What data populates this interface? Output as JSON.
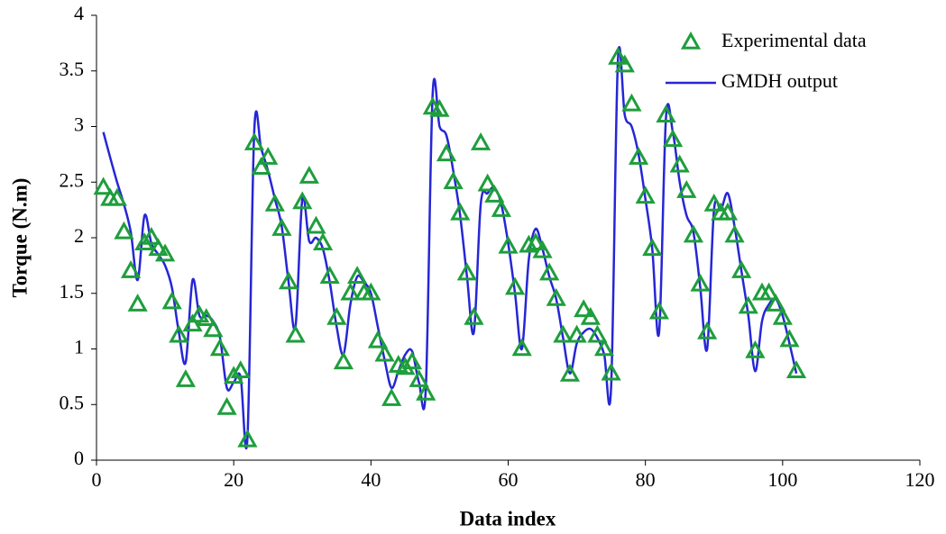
{
  "chart_data": {
    "type": "line",
    "xlabel": "Data index",
    "ylabel": "Torque (N.m)",
    "xlim": [
      0,
      120
    ],
    "ylim": [
      0,
      4
    ],
    "xticks": [
      0,
      20,
      40,
      60,
      80,
      100,
      120
    ],
    "yticks": [
      0,
      0.5,
      1,
      1.5,
      2,
      2.5,
      3,
      3.5,
      4
    ],
    "legend": "upper right",
    "x": [
      1,
      2,
      3,
      4,
      5,
      6,
      7,
      8,
      9,
      10,
      11,
      12,
      13,
      14,
      15,
      16,
      17,
      18,
      19,
      20,
      21,
      22,
      23,
      24,
      25,
      26,
      27,
      28,
      29,
      30,
      31,
      32,
      33,
      34,
      35,
      36,
      37,
      38,
      39,
      40,
      41,
      42,
      43,
      44,
      45,
      46,
      47,
      48,
      49,
      50,
      51,
      52,
      53,
      54,
      55,
      56,
      57,
      58,
      59,
      60,
      61,
      62,
      63,
      64,
      65,
      66,
      67,
      68,
      69,
      70,
      71,
      72,
      73,
      74,
      75,
      76,
      77,
      78,
      79,
      80,
      81,
      82,
      83,
      84,
      85,
      86,
      87,
      88,
      89,
      90,
      91,
      92,
      93,
      94,
      95,
      96,
      97,
      98,
      99,
      100,
      101,
      102
    ],
    "series": [
      {
        "name": "Experimental data",
        "color": "#1e9e3c",
        "marker": "triangle",
        "values": [
          2.45,
          2.35,
          2.35,
          2.05,
          1.7,
          1.4,
          1.95,
          2.0,
          1.9,
          1.85,
          1.42,
          1.12,
          0.72,
          1.22,
          1.3,
          1.27,
          1.17,
          1.0,
          0.47,
          0.75,
          0.8,
          0.18,
          2.85,
          2.63,
          2.72,
          2.3,
          2.08,
          1.6,
          1.12,
          2.32,
          2.55,
          2.1,
          1.95,
          1.65,
          1.28,
          0.88,
          1.5,
          1.65,
          1.5,
          1.5,
          1.07,
          0.95,
          0.55,
          0.85,
          0.83,
          0.88,
          0.72,
          0.6,
          3.17,
          3.15,
          2.75,
          2.5,
          2.22,
          1.68,
          1.28,
          2.85,
          2.48,
          2.38,
          2.25,
          1.92,
          1.55,
          1.0,
          1.93,
          1.95,
          1.88,
          1.68,
          1.45,
          1.12,
          0.77,
          1.12,
          1.35,
          1.28,
          1.12,
          1.0,
          0.78,
          3.62,
          3.55,
          3.2,
          2.72,
          2.37,
          1.9,
          1.33,
          3.1,
          2.88,
          2.65,
          2.42,
          2.02,
          1.58,
          1.15,
          2.3,
          2.22,
          2.22,
          2.02,
          1.7,
          1.38,
          0.98,
          1.5,
          1.5,
          1.4,
          1.28,
          1.08,
          0.8
        ]
      },
      {
        "name": "GMDH output",
        "color": "#2626d6",
        "marker": "none",
        "values": [
          2.95,
          2.72,
          2.5,
          2.3,
          2.05,
          1.62,
          2.2,
          1.95,
          1.85,
          1.75,
          1.55,
          1.15,
          0.88,
          1.62,
          1.3,
          1.3,
          1.25,
          1.1,
          0.65,
          0.7,
          0.75,
          0.2,
          2.97,
          2.8,
          2.6,
          2.35,
          2.1,
          1.6,
          1.2,
          2.35,
          1.97,
          2.0,
          1.9,
          1.6,
          1.2,
          0.95,
          1.4,
          1.65,
          1.6,
          1.5,
          1.2,
          0.9,
          0.65,
          0.8,
          0.95,
          0.98,
          0.7,
          0.65,
          3.3,
          3.0,
          2.92,
          2.6,
          2.2,
          1.65,
          1.15,
          2.3,
          2.4,
          2.45,
          2.3,
          1.95,
          1.5,
          1.0,
          1.8,
          2.08,
          1.9,
          1.65,
          1.45,
          1.1,
          0.78,
          1.05,
          1.15,
          1.18,
          1.1,
          0.95,
          0.65,
          3.6,
          3.1,
          3.0,
          2.75,
          2.35,
          1.9,
          1.15,
          3.08,
          2.95,
          2.5,
          2.2,
          2.05,
          1.55,
          1.0,
          2.25,
          2.25,
          2.4,
          2.1,
          1.7,
          1.3,
          0.8,
          1.25,
          1.4,
          1.45,
          1.3,
          1.05,
          0.78
        ]
      }
    ]
  }
}
